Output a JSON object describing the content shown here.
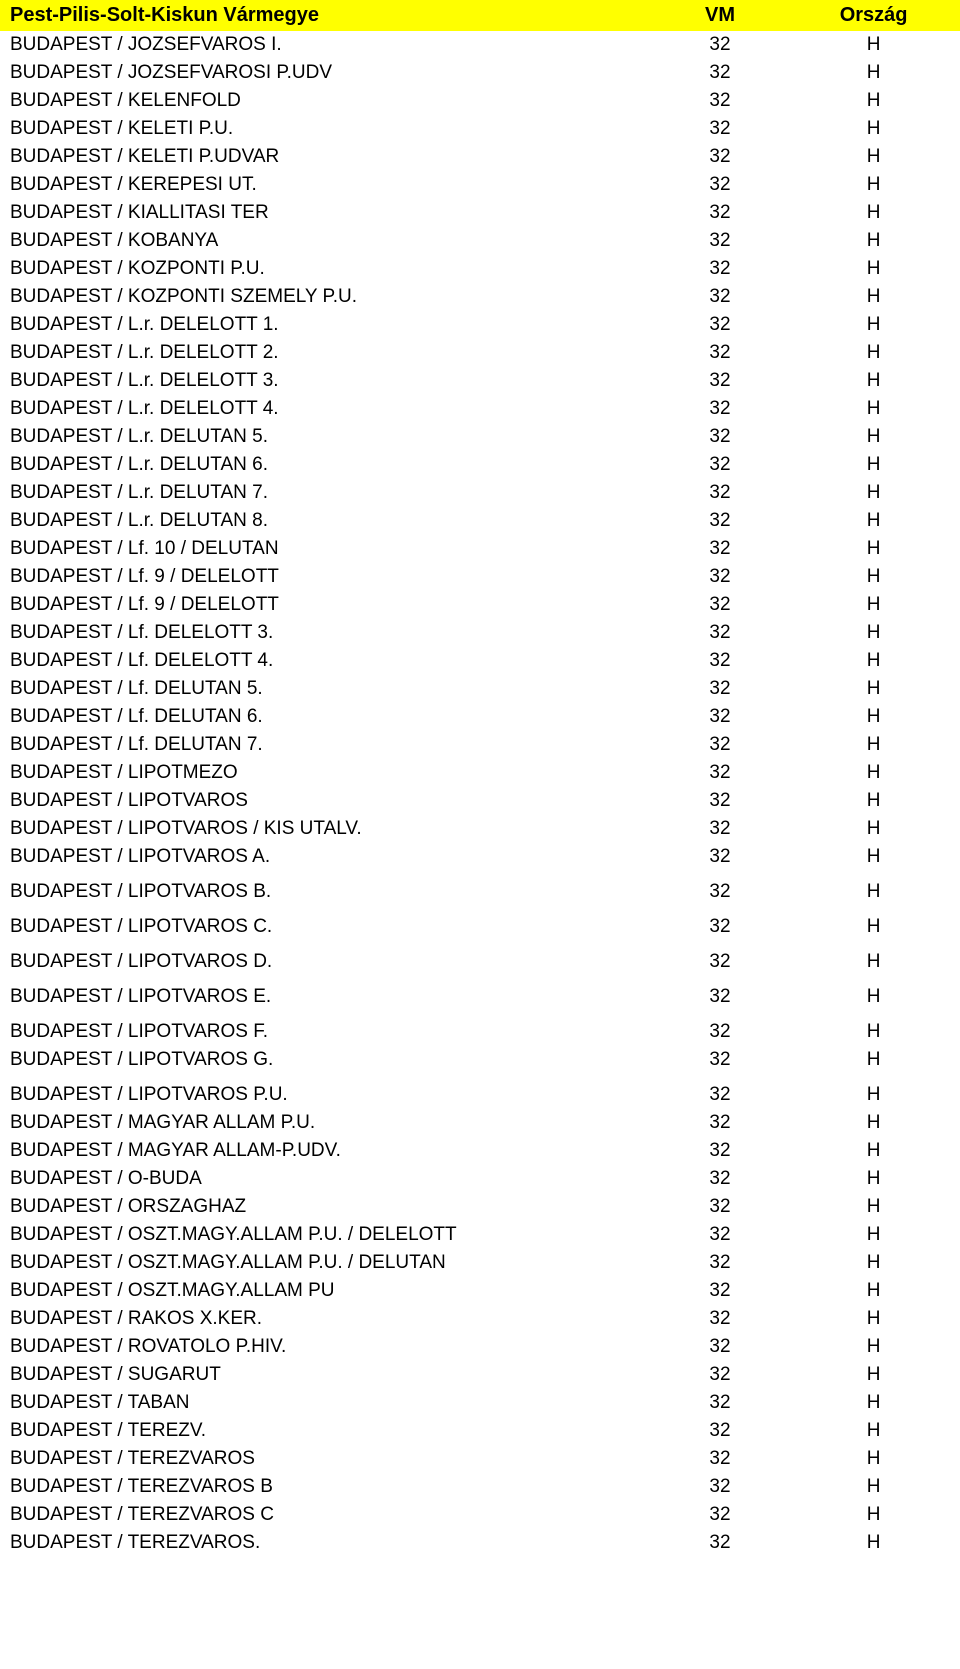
{
  "table": {
    "header_bg": "#ffff00",
    "text_color": "#000000",
    "font_family": "Arial",
    "header_fontsize": 20,
    "row_fontsize": 19,
    "columns": [
      {
        "label": "Pest-Pilis-Solt-Kiskun Vármegye",
        "align": "left"
      },
      {
        "label": "VM",
        "align": "center"
      },
      {
        "label": "Ország",
        "align": "center"
      }
    ],
    "rows": [
      {
        "name": "BUDAPEST / JOZSEFVAROS I.",
        "vm": "32",
        "orszag": "H",
        "gap": false
      },
      {
        "name": "BUDAPEST / JOZSEFVAROSI P.UDV",
        "vm": "32",
        "orszag": "H",
        "gap": false
      },
      {
        "name": "BUDAPEST / KELENFOLD",
        "vm": "32",
        "orszag": "H",
        "gap": false
      },
      {
        "name": "BUDAPEST / KELETI P.U.",
        "vm": "32",
        "orszag": "H",
        "gap": false
      },
      {
        "name": "BUDAPEST / KELETI P.UDVAR",
        "vm": "32",
        "orszag": "H",
        "gap": false
      },
      {
        "name": "BUDAPEST / KEREPESI UT.",
        "vm": "32",
        "orszag": "H",
        "gap": false
      },
      {
        "name": "BUDAPEST / KIALLITASI TER",
        "vm": "32",
        "orszag": "H",
        "gap": false
      },
      {
        "name": "BUDAPEST / KOBANYA",
        "vm": "32",
        "orszag": "H",
        "gap": false
      },
      {
        "name": "BUDAPEST / KOZPONTI P.U.",
        "vm": "32",
        "orszag": "H",
        "gap": false
      },
      {
        "name": "BUDAPEST / KOZPONTI SZEMELY P.U.",
        "vm": "32",
        "orszag": "H",
        "gap": false
      },
      {
        "name": "BUDAPEST / L.r. DELELOTT 1.",
        "vm": "32",
        "orszag": "H",
        "gap": false
      },
      {
        "name": "BUDAPEST / L.r. DELELOTT 2.",
        "vm": "32",
        "orszag": "H",
        "gap": false
      },
      {
        "name": "BUDAPEST / L.r. DELELOTT 3.",
        "vm": "32",
        "orszag": "H",
        "gap": false
      },
      {
        "name": "BUDAPEST / L.r. DELELOTT 4.",
        "vm": "32",
        "orszag": "H",
        "gap": false
      },
      {
        "name": "BUDAPEST / L.r. DELUTAN 5.",
        "vm": "32",
        "orszag": "H",
        "gap": false
      },
      {
        "name": "BUDAPEST / L.r. DELUTAN 6.",
        "vm": "32",
        "orszag": "H",
        "gap": false
      },
      {
        "name": "BUDAPEST / L.r. DELUTAN 7.",
        "vm": "32",
        "orszag": "H",
        "gap": false
      },
      {
        "name": "BUDAPEST / L.r. DELUTAN 8.",
        "vm": "32",
        "orszag": "H",
        "gap": false
      },
      {
        "name": "BUDAPEST / Lf. 10 / DELUTAN",
        "vm": "32",
        "orszag": "H",
        "gap": false
      },
      {
        "name": "BUDAPEST / Lf. 9 / DELELOTT",
        "vm": "32",
        "orszag": "H",
        "gap": false
      },
      {
        "name": "BUDAPEST / Lf. 9 / DELELOTT",
        "vm": "32",
        "orszag": "H",
        "gap": false
      },
      {
        "name": "BUDAPEST / Lf. DELELOTT 3.",
        "vm": "32",
        "orszag": "H",
        "gap": false
      },
      {
        "name": "BUDAPEST / Lf. DELELOTT 4.",
        "vm": "32",
        "orszag": "H",
        "gap": false
      },
      {
        "name": "BUDAPEST / Lf. DELUTAN 5.",
        "vm": "32",
        "orszag": "H",
        "gap": false
      },
      {
        "name": "BUDAPEST / Lf. DELUTAN 6.",
        "vm": "32",
        "orszag": "H",
        "gap": false
      },
      {
        "name": "BUDAPEST / Lf. DELUTAN 7.",
        "vm": "32",
        "orszag": "H",
        "gap": false
      },
      {
        "name": "BUDAPEST / LIPOTMEZO",
        "vm": "32",
        "orszag": "H",
        "gap": false
      },
      {
        "name": "BUDAPEST / LIPOTVAROS",
        "vm": "32",
        "orszag": "H",
        "gap": false
      },
      {
        "name": "BUDAPEST / LIPOTVAROS / KIS UTALV.",
        "vm": "32",
        "orszag": "H",
        "gap": false
      },
      {
        "name": "BUDAPEST / LIPOTVAROS A.",
        "vm": "32",
        "orszag": "H",
        "gap": false
      },
      {
        "name": "BUDAPEST / LIPOTVAROS B.",
        "vm": "32",
        "orszag": "H",
        "gap": true
      },
      {
        "name": "BUDAPEST / LIPOTVAROS C.",
        "vm": "32",
        "orszag": "H",
        "gap": true
      },
      {
        "name": "BUDAPEST / LIPOTVAROS D.",
        "vm": "32",
        "orszag": "H",
        "gap": true
      },
      {
        "name": "BUDAPEST / LIPOTVAROS E.",
        "vm": "32",
        "orszag": "H",
        "gap": true
      },
      {
        "name": "BUDAPEST / LIPOTVAROS F.",
        "vm": "32",
        "orszag": "H",
        "gap": true
      },
      {
        "name": "BUDAPEST / LIPOTVAROS G.",
        "vm": "32",
        "orszag": "H",
        "gap": false
      },
      {
        "name": "BUDAPEST / LIPOTVAROS P.U.",
        "vm": "32",
        "orszag": "H",
        "gap": true
      },
      {
        "name": "BUDAPEST / MAGYAR ALLAM P.U.",
        "vm": "32",
        "orszag": "H",
        "gap": false
      },
      {
        "name": "BUDAPEST / MAGYAR ALLAM-P.UDV.",
        "vm": "32",
        "orszag": "H",
        "gap": false
      },
      {
        "name": "BUDAPEST / O-BUDA",
        "vm": "32",
        "orszag": "H",
        "gap": false
      },
      {
        "name": "BUDAPEST / ORSZAGHAZ",
        "vm": "32",
        "orszag": "H",
        "gap": false
      },
      {
        "name": "BUDAPEST / OSZT.MAGY.ALLAM P.U. / DELELOTT",
        "vm": "32",
        "orszag": "H",
        "gap": false
      },
      {
        "name": "BUDAPEST / OSZT.MAGY.ALLAM P.U. / DELUTAN",
        "vm": "32",
        "orszag": "H",
        "gap": false
      },
      {
        "name": "BUDAPEST / OSZT.MAGY.ALLAM PU",
        "vm": "32",
        "orszag": "H",
        "gap": false
      },
      {
        "name": "BUDAPEST / RAKOS X.KER.",
        "vm": "32",
        "orszag": "H",
        "gap": false
      },
      {
        "name": "BUDAPEST / ROVATOLO P.HIV.",
        "vm": "32",
        "orszag": "H",
        "gap": false
      },
      {
        "name": "BUDAPEST / SUGARUT",
        "vm": "32",
        "orszag": "H",
        "gap": false
      },
      {
        "name": "BUDAPEST / TABAN",
        "vm": "32",
        "orszag": "H",
        "gap": false
      },
      {
        "name": "BUDAPEST / TEREZV.",
        "vm": "32",
        "orszag": "H",
        "gap": false
      },
      {
        "name": "BUDAPEST / TEREZVAROS",
        "vm": "32",
        "orszag": "H",
        "gap": false
      },
      {
        "name": "BUDAPEST / TEREZVAROS B",
        "vm": "32",
        "orszag": "H",
        "gap": false
      },
      {
        "name": "BUDAPEST / TEREZVAROS C",
        "vm": "32",
        "orszag": "H",
        "gap": false
      },
      {
        "name": "BUDAPEST / TEREZVAROS.",
        "vm": "32",
        "orszag": "H",
        "gap": false
      }
    ]
  }
}
